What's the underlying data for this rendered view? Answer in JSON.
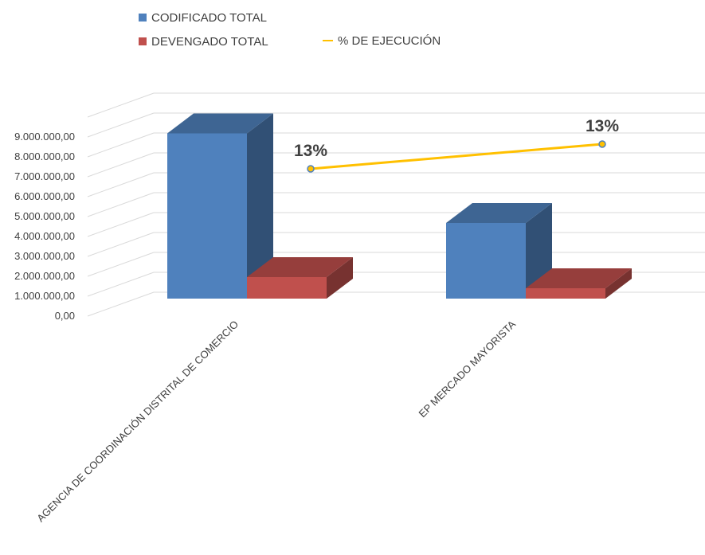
{
  "chart_data": {
    "type": "bar",
    "categories": [
      "AGENCIA DE COORDINACIÓN DISTRITAL DE COMERCIO",
      "EP MERCADO MAYORISTA"
    ],
    "series": [
      {
        "name": "CODIFICADO TOTAL",
        "values": [
          8300000,
          3800000
        ],
        "color": "#4f81bd"
      },
      {
        "name": "DEVENGADO TOTAL",
        "values": [
          1080000,
          520000
        ],
        "color": "#c0504d"
      }
    ],
    "line_series": {
      "name": "% DE EJECUCIÓN",
      "values": [
        13,
        13
      ],
      "labels": [
        "13%",
        "13%"
      ],
      "color": "#ffc000"
    },
    "y_ticks": [
      "0,00",
      "1.000.000,00",
      "2.000.000,00",
      "3.000.000,00",
      "4.000.000,00",
      "5.000.000,00",
      "6.000.000,00",
      "7.000.000,00",
      "8.000.000,00",
      "9.000.000,00"
    ],
    "ylim": [
      0,
      9000000
    ],
    "grid": true,
    "legend_position": "top-left",
    "style": "3d-column"
  }
}
